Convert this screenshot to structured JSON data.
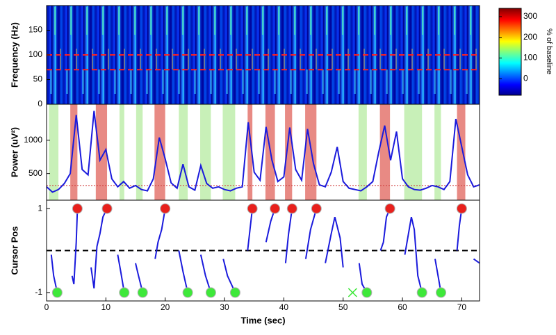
{
  "chart_data": [
    {
      "type": "heatmap",
      "ylabel": "Frequency (Hz)",
      "xlim": [
        0,
        73
      ],
      "ylim": [
        0,
        200
      ],
      "yticks": [
        0,
        50,
        100,
        150
      ],
      "hlines": [
        70,
        100
      ],
      "hline_color": "#ff2020",
      "colorbar": {
        "label": "% of baseline",
        "lim": [
          -80,
          340
        ],
        "ticks": [
          0,
          100,
          200,
          300
        ]
      }
    },
    {
      "type": "line",
      "ylabel": "Power (uV²)",
      "xlim": [
        0,
        73
      ],
      "ylim": [
        100,
        1540
      ],
      "yticks": [
        500,
        1000
      ],
      "threshold": 320,
      "threshold_color": "#d04040",
      "bands": [
        {
          "color": "#e88a84",
          "intervals": [
            [
              4.0,
              5.2
            ],
            [
              8.3,
              10.2
            ],
            [
              18.2,
              20.0
            ],
            [
              33.9,
              34.7
            ],
            [
              36.9,
              38.5
            ],
            [
              40.2,
              41.4
            ],
            [
              43.6,
              45.5
            ],
            [
              56.2,
              57.9
            ],
            [
              69.2,
              70.6
            ]
          ]
        },
        {
          "color": "#c8f0b8",
          "intervals": [
            [
              0.4,
              2.0
            ],
            [
              12.3,
              13.1
            ],
            [
              15.1,
              16.2
            ],
            [
              22.3,
              23.8
            ],
            [
              25.9,
              27.7
            ],
            [
              29.7,
              31.8
            ],
            [
              52.6,
              54.0
            ],
            [
              60.3,
              63.3
            ],
            [
              65.4,
              66.5
            ]
          ]
        }
      ],
      "series": [
        {
          "color": "#1a1adc",
          "x": [
            0,
            1,
            2,
            3,
            4,
            5,
            6,
            7,
            8,
            9,
            10,
            11,
            12,
            13,
            14,
            15,
            16,
            17,
            18,
            19,
            20,
            21,
            22,
            23,
            24,
            25,
            26,
            27,
            28,
            29,
            30,
            31,
            32,
            33,
            34,
            35,
            36,
            37,
            38,
            39,
            40,
            41,
            42,
            43,
            44,
            45,
            46,
            47,
            48,
            49,
            50,
            51,
            52,
            53,
            54,
            55,
            56,
            57,
            58,
            59,
            60,
            61,
            62,
            63,
            64,
            65,
            66,
            67,
            68,
            69,
            70,
            71,
            72,
            73
          ],
          "values": [
            300,
            220,
            260,
            350,
            500,
            1380,
            560,
            480,
            1440,
            700,
            860,
            420,
            300,
            380,
            280,
            320,
            260,
            240,
            420,
            1040,
            720,
            360,
            280,
            640,
            300,
            250,
            620,
            350,
            280,
            300,
            260,
            240,
            280,
            300,
            1270,
            520,
            400,
            1200,
            700,
            380,
            450,
            1190,
            560,
            400,
            1170,
            650,
            330,
            300,
            520,
            900,
            380,
            280,
            260,
            240,
            300,
            380,
            820,
            1220,
            700,
            1130,
            420,
            300,
            260,
            250,
            280,
            320,
            300,
            260,
            380,
            1320,
            900,
            480,
            300,
            330
          ]
        }
      ]
    },
    {
      "type": "line",
      "ylabel": "Cursor Pos",
      "xlabel": "Time (sec)",
      "xlim": [
        0,
        73
      ],
      "xticks": [
        0,
        10,
        20,
        30,
        40,
        50,
        60,
        70
      ],
      "ylim": [
        -1.2,
        1.2
      ],
      "yticks": [
        -1,
        1
      ],
      "hline": 0,
      "hline_color": "#000000",
      "series": [
        {
          "color": "#1a1adc",
          "x": [
            0.8,
            1.2,
            1.8,
            null,
            4.3,
            4.6,
            5.0,
            5.2,
            null,
            7.5,
            8.0,
            8.5,
            9.0,
            9.5,
            10.2,
            null,
            12.0,
            12.5,
            13.1,
            null,
            15.0,
            15.5,
            16.2,
            null,
            18.3,
            18.8,
            19.4,
            20.0,
            null,
            22.3,
            23.0,
            23.8,
            null,
            26.0,
            26.8,
            27.7,
            null,
            29.8,
            30.5,
            31.8,
            null,
            33.9,
            34.3,
            34.7,
            null,
            37.0,
            37.8,
            38.5,
            null,
            40.3,
            40.8,
            41.4,
            null,
            43.7,
            44.5,
            45.5,
            null,
            47.0,
            48.0,
            48.6,
            49.5,
            50.0,
            null,
            52.7,
            53.2,
            54.0,
            null,
            56.3,
            56.8,
            57.3,
            57.9,
            null,
            60.4,
            61.5,
            62.0,
            62.6,
            63.3,
            null,
            65.5,
            66.0,
            66.5,
            null,
            69.2,
            69.6,
            70.0,
            null,
            72.0,
            73
          ],
          "values": [
            -0.1,
            -0.6,
            -1,
            null,
            -0.6,
            -0.8,
            0.2,
            1,
            null,
            -0.4,
            -0.9,
            0.1,
            0.4,
            0.8,
            1,
            null,
            -0.1,
            -0.5,
            -1,
            null,
            -0.3,
            -0.6,
            -1,
            null,
            -0.2,
            0.2,
            0.5,
            1,
            null,
            0,
            -0.5,
            -1,
            null,
            -0.1,
            -0.6,
            -1,
            null,
            -0.2,
            -0.6,
            -1,
            null,
            0,
            0.5,
            1,
            null,
            0.2,
            0.7,
            1,
            null,
            -0.3,
            0.4,
            1,
            null,
            -0.2,
            0.5,
            1,
            null,
            -0.3,
            0.4,
            0.8,
            0.3,
            -0.4,
            null,
            -0.3,
            -0.8,
            -1,
            null,
            0,
            0.2,
            0.8,
            1,
            null,
            -0.1,
            0.8,
            0.5,
            -0.6,
            -1,
            null,
            -0.2,
            -0.6,
            -1,
            null,
            0,
            0.6,
            1,
            null,
            -0.2,
            -0.3
          ]
        }
      ],
      "markers": [
        {
          "marker": "circle",
          "color": "#e8201c",
          "x": [
            5.2,
            10.2,
            20.0,
            34.7,
            38.5,
            41.4,
            45.5,
            57.9,
            70.0
          ],
          "values": [
            1,
            1,
            1,
            1,
            1,
            1,
            1,
            1,
            1
          ]
        },
        {
          "marker": "circle",
          "color": "#3ee83a",
          "x": [
            1.8,
            13.1,
            16.2,
            23.8,
            27.7,
            31.8,
            54.0,
            63.3,
            66.5
          ],
          "values": [
            -1,
            -1,
            -1,
            -1,
            -1,
            -1,
            -1,
            -1,
            -1
          ]
        },
        {
          "marker": "x",
          "color": "#3ee83a",
          "x": [
            51.6
          ],
          "values": [
            -1
          ]
        }
      ]
    }
  ]
}
